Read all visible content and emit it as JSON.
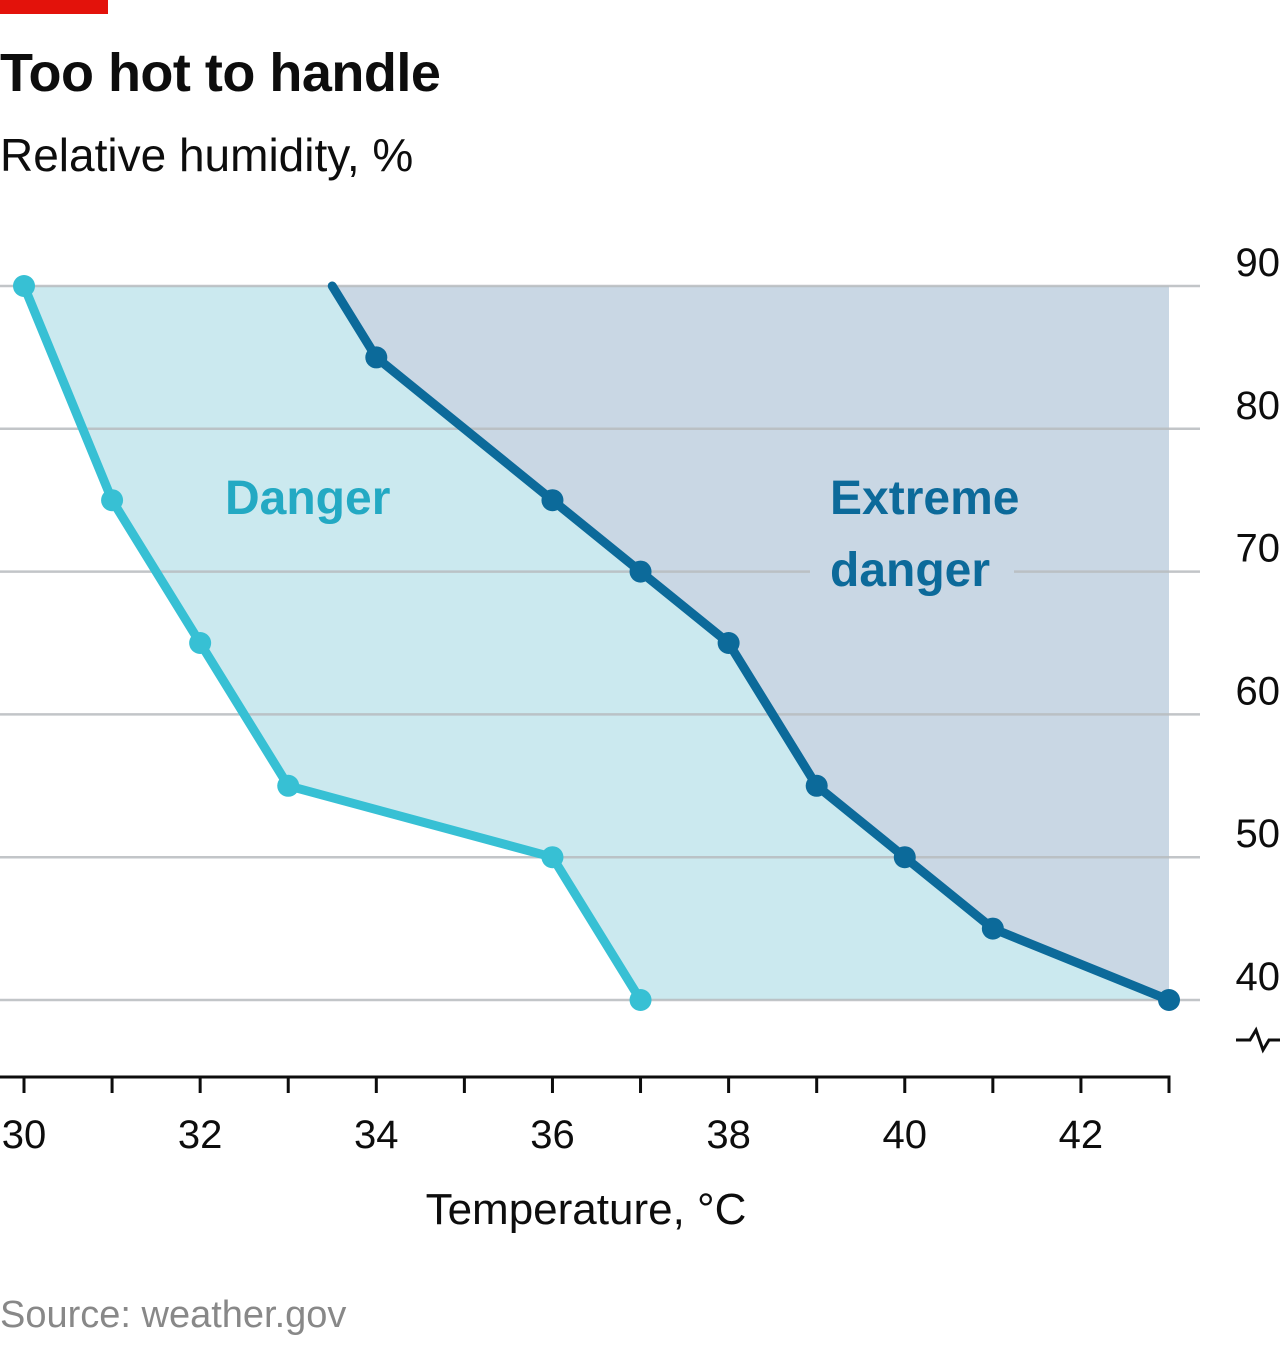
{
  "header": {
    "title": "Too hot to handle",
    "subtitle": "Relative humidity, %"
  },
  "footer": {
    "source": "Source: weather.gov"
  },
  "chart_data": {
    "type": "line",
    "title": "Too hot to handle",
    "subtitle": "Relative humidity, %",
    "xlabel": "Temperature, °C",
    "ylabel": "Relative humidity, %",
    "xlim": [
      30,
      43
    ],
    "ylim": [
      40,
      90
    ],
    "x_ticks": [
      30,
      32,
      34,
      36,
      38,
      40,
      42
    ],
    "y_ticks": [
      40,
      50,
      60,
      70,
      80,
      90
    ],
    "y_axis_side": "right",
    "y_axis_break": true,
    "grid": true,
    "series": [
      {
        "name": "Danger",
        "color": "#37c0d4",
        "fill": "#cbe9ef",
        "points": [
          [
            30,
            90
          ],
          [
            31,
            75
          ],
          [
            32,
            65
          ],
          [
            33,
            55
          ],
          [
            36,
            50
          ],
          [
            37,
            40
          ]
        ]
      },
      {
        "name": "Extreme danger",
        "color": "#0c6a9a",
        "fill": "#c9d7e4",
        "points": [
          [
            33.5,
            90
          ],
          [
            34,
            85
          ],
          [
            36,
            75
          ],
          [
            37,
            70
          ],
          [
            38,
            65
          ],
          [
            39,
            55
          ],
          [
            40,
            50
          ],
          [
            41,
            45
          ],
          [
            43,
            40
          ]
        ]
      }
    ],
    "annotations": [
      {
        "text": "Danger",
        "color": "#23a9c3"
      },
      {
        "lines": [
          "Extreme",
          "danger"
        ],
        "color": "#0c6a9a"
      }
    ]
  }
}
